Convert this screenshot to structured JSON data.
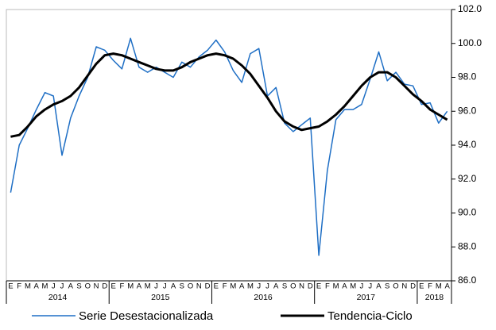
{
  "chart_data": {
    "type": "line",
    "categories": [
      "E",
      "F",
      "M",
      "A",
      "M",
      "J",
      "J",
      "A",
      "S",
      "O",
      "N",
      "D",
      "E",
      "F",
      "M",
      "A",
      "M",
      "J",
      "J",
      "A",
      "S",
      "O",
      "N",
      "D",
      "E",
      "F",
      "M",
      "A",
      "M",
      "J",
      "J",
      "A",
      "S",
      "O",
      "N",
      "D",
      "E",
      "F",
      "M",
      "A",
      "M",
      "J",
      "J",
      "A",
      "S",
      "O",
      "N",
      "D",
      "E",
      "F",
      "M",
      "A"
    ],
    "category_groups": [
      "2014",
      "2015",
      "2016",
      "2017",
      "2018"
    ],
    "series": [
      {
        "name": "Serie Desestacionalizada",
        "color": "#1f6fc5",
        "width": 1.5,
        "values": [
          91.2,
          94.0,
          95.0,
          96.1,
          97.1,
          96.9,
          93.4,
          95.6,
          96.9,
          98.0,
          99.8,
          99.6,
          99.0,
          98.5,
          100.3,
          98.6,
          98.3,
          98.6,
          98.3,
          98.0,
          98.9,
          98.6,
          99.2,
          99.6,
          100.2,
          99.5,
          98.4,
          97.7,
          99.4,
          99.7,
          96.9,
          97.4,
          95.3,
          94.8,
          95.2,
          95.6,
          87.5,
          92.5,
          95.5,
          96.1,
          96.1,
          96.4,
          97.9,
          99.5,
          97.8,
          98.3,
          97.6,
          97.5,
          96.4,
          96.5,
          95.3,
          96.0
        ]
      },
      {
        "name": "Tendencia-Ciclo",
        "color": "#000000",
        "width": 3,
        "values": [
          94.5,
          94.6,
          95.1,
          95.7,
          96.1,
          96.4,
          96.6,
          96.9,
          97.4,
          98.1,
          98.8,
          99.3,
          99.4,
          99.3,
          99.1,
          98.9,
          98.7,
          98.5,
          98.4,
          98.4,
          98.6,
          98.9,
          99.1,
          99.3,
          99.4,
          99.3,
          99.1,
          98.7,
          98.2,
          97.5,
          96.8,
          96.0,
          95.4,
          95.1,
          94.9,
          95.0,
          95.1,
          95.4,
          95.8,
          96.3,
          96.9,
          97.5,
          98.0,
          98.3,
          98.3,
          98.0,
          97.5,
          97.0,
          96.6,
          96.1,
          95.8,
          95.5
        ]
      }
    ],
    "ylim": [
      86,
      102
    ],
    "yticks": [
      {
        "value": 86,
        "label": "86.0"
      },
      {
        "value": 88,
        "label": "88.0"
      },
      {
        "value": 90,
        "label": "90.0"
      },
      {
        "value": 92,
        "label": "92.0"
      },
      {
        "value": 94,
        "label": "94.0"
      },
      {
        "value": 96,
        "label": "96.0"
      },
      {
        "value": 98,
        "label": "98.0"
      },
      {
        "value": 100,
        "label": "100.0"
      },
      {
        "value": 102,
        "label": "102.0"
      }
    ],
    "y_axis_side": "right",
    "legend": "bottom"
  }
}
